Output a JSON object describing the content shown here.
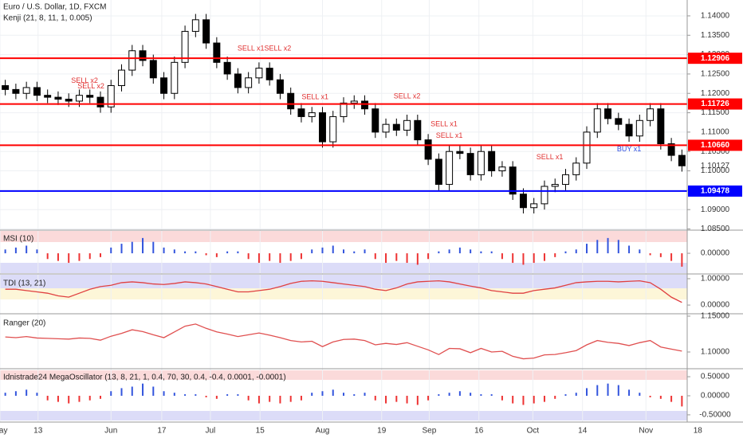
{
  "chart_data": [
    {
      "type": "candlestick",
      "title": "Euro / U.S. Dollar, 1D, FXCM",
      "subtitle": "Kenji (21, 8, 11, 1, 0.005)",
      "xlim": [
        0,
        65
      ],
      "ylim": [
        1.0849,
        1.1441
      ],
      "xticks": [
        {
          "value": 0,
          "label": "May"
        },
        {
          "value": 3.6,
          "label": "13"
        },
        {
          "value": 10.5,
          "label": "Jun"
        },
        {
          "value": 15.3,
          "label": "17"
        },
        {
          "value": 19.9,
          "label": "Jul"
        },
        {
          "value": 24.6,
          "label": "15"
        },
        {
          "value": 30.5,
          "label": "Aug"
        },
        {
          "value": 36.1,
          "label": "19"
        },
        {
          "value": 40.6,
          "label": "Sep"
        },
        {
          "value": 45.3,
          "label": "16"
        },
        {
          "value": 50.4,
          "label": "Oct"
        },
        {
          "value": 55.1,
          "label": "14"
        },
        {
          "value": 61.1,
          "label": "Nov"
        },
        {
          "value": 66,
          "label": "18"
        }
      ],
      "yticks": [
        {
          "value": 1.14,
          "label": "1.14000"
        },
        {
          "value": 1.135,
          "label": "1.13500"
        },
        {
          "value": 1.13,
          "label": "1.13000"
        },
        {
          "value": 1.125,
          "label": "1.12500"
        },
        {
          "value": 1.12,
          "label": "1.12000"
        },
        {
          "value": 1.115,
          "label": "1.11500"
        },
        {
          "value": 1.11,
          "label": "1.11000"
        },
        {
          "value": 1.105,
          "label": "1.10500"
        },
        {
          "value": 1.1,
          "label": "1.10000"
        },
        {
          "value": 1.095,
          "label": "1.09500"
        },
        {
          "value": 1.09,
          "label": "1.09000"
        },
        {
          "value": 1.085,
          "label": "1.08500"
        }
      ],
      "grid": true,
      "up_color": "#ffffff",
      "down_color": "#000000",
      "open": [
        1.122,
        1.121,
        1.12,
        1.1215,
        1.1195,
        1.119,
        1.1185,
        1.118,
        1.1195,
        1.119,
        1.1165,
        1.122,
        1.126,
        1.131,
        1.1285,
        1.124,
        1.12,
        1.128,
        1.136,
        1.139,
        1.133,
        1.128,
        1.125,
        1.1215,
        1.124,
        1.1265,
        1.1235,
        1.12,
        1.116,
        1.114,
        1.115,
        1.1075,
        1.114,
        1.1175,
        1.118,
        1.116,
        1.11,
        1.112,
        1.1105,
        1.113,
        1.108,
        1.103,
        1.0965,
        1.105,
        1.1045,
        1.099,
        1.105,
        1.1,
        1.101,
        1.094,
        1.0905,
        1.0915,
        1.096,
        1.0965,
        1.099,
        1.102,
        1.11,
        1.116,
        1.1135,
        1.112,
        1.109,
        1.113,
        1.116,
        1.107,
        1.104
      ],
      "high": [
        1.1235,
        1.1225,
        1.123,
        1.123,
        1.121,
        1.1205,
        1.12,
        1.121,
        1.121,
        1.1205,
        1.1235,
        1.1275,
        1.1325,
        1.1325,
        1.13,
        1.1255,
        1.1295,
        1.1375,
        1.1405,
        1.1405,
        1.1345,
        1.1295,
        1.1265,
        1.1255,
        1.128,
        1.128,
        1.125,
        1.1215,
        1.1175,
        1.1165,
        1.1165,
        1.1155,
        1.119,
        1.1195,
        1.1195,
        1.1175,
        1.1135,
        1.1135,
        1.1145,
        1.1145,
        1.1095,
        1.1045,
        1.1065,
        1.1065,
        1.106,
        1.1065,
        1.1065,
        1.1025,
        1.1025,
        1.0955,
        1.093,
        1.0975,
        1.098,
        1.1005,
        1.1035,
        1.1115,
        1.1175,
        1.1175,
        1.115,
        1.1135,
        1.1145,
        1.1175,
        1.1175,
        1.1085,
        1.1055
      ],
      "low": [
        1.1195,
        1.1185,
        1.1185,
        1.118,
        1.1175,
        1.117,
        1.1165,
        1.1165,
        1.1175,
        1.115,
        1.115,
        1.1205,
        1.1245,
        1.127,
        1.1225,
        1.1185,
        1.1185,
        1.1265,
        1.1345,
        1.1315,
        1.1265,
        1.1235,
        1.12,
        1.12,
        1.1225,
        1.122,
        1.1185,
        1.1145,
        1.1125,
        1.1125,
        1.106,
        1.106,
        1.1125,
        1.116,
        1.1145,
        1.1085,
        1.1085,
        1.109,
        1.109,
        1.1065,
        1.1015,
        1.095,
        1.095,
        1.103,
        1.0975,
        1.0975,
        1.0985,
        1.0985,
        1.0925,
        1.089,
        1.089,
        1.09,
        1.0945,
        1.095,
        1.0975,
        1.1005,
        1.1085,
        1.112,
        1.1105,
        1.1075,
        1.1075,
        1.1115,
        1.1055,
        1.1025,
        1.0998
      ],
      "close": [
        1.121,
        1.12,
        1.1215,
        1.1195,
        1.119,
        1.1185,
        1.118,
        1.1195,
        1.119,
        1.1165,
        1.122,
        1.126,
        1.131,
        1.1285,
        1.124,
        1.12,
        1.128,
        1.136,
        1.139,
        1.133,
        1.128,
        1.125,
        1.1215,
        1.124,
        1.1265,
        1.1235,
        1.12,
        1.116,
        1.114,
        1.115,
        1.1075,
        1.114,
        1.1175,
        1.118,
        1.116,
        1.11,
        1.112,
        1.1105,
        1.113,
        1.108,
        1.103,
        1.0965,
        1.105,
        1.1045,
        1.099,
        1.105,
        1.1,
        1.101,
        1.094,
        1.0905,
        1.0915,
        1.096,
        1.0965,
        1.099,
        1.102,
        1.11,
        1.116,
        1.1135,
        1.112,
        1.109,
        1.113,
        1.116,
        1.107,
        1.104,
        1.1013
      ],
      "levels": [
        {
          "value": 1.12906,
          "color": "#ff0000"
        },
        {
          "value": 1.11726,
          "color": "#ff0000"
        },
        {
          "value": 1.1066,
          "label": "1.10660",
          "color": "#ff0000"
        },
        {
          "value": 1.09478,
          "color": "#0000ff"
        }
      ],
      "last_price": 1.10127,
      "annotations": [
        {
          "text": "SELL x2",
          "x": 8,
          "y": 1.1232,
          "color": "#e03030"
        },
        {
          "text": "SELL x2",
          "x": 8.6,
          "y": 1.1218,
          "color": "#e03030"
        },
        {
          "text": "SELL x1SELL x2",
          "x": 25,
          "y": 1.1315,
          "color": "#e03030"
        },
        {
          "text": "SELL x1",
          "x": 29.8,
          "y": 1.119,
          "color": "#e03030"
        },
        {
          "text": "SELL x2",
          "x": 38.5,
          "y": 1.1192,
          "color": "#e03030"
        },
        {
          "text": "SELL x1",
          "x": 42,
          "y": 1.112,
          "color": "#e03030"
        },
        {
          "text": "SELL x1",
          "x": 42.5,
          "y": 1.109,
          "color": "#e03030"
        },
        {
          "text": "SELL x1",
          "x": 52,
          "y": 1.1035,
          "color": "#e03030"
        },
        {
          "text": "BUY x1",
          "x": 59.5,
          "y": 1.1055,
          "color": "#3050e0"
        }
      ]
    },
    {
      "type": "bar",
      "title": "MSI (10)",
      "ylim": [
        -1.04,
        1.17
      ],
      "yticks": [
        {
          "value": 0,
          "label": "0.00000"
        }
      ],
      "up_color": "#3355dd",
      "down_color": "#ee3333",
      "values": [
        0.2,
        0.3,
        0.4,
        0.2,
        -0.3,
        -0.4,
        -0.5,
        -0.4,
        -0.3,
        -0.2,
        0.3,
        0.5,
        0.6,
        0.8,
        0.6,
        0.3,
        0.2,
        0.1,
        0.1,
        -0.1,
        -0.2,
        0.1,
        0.1,
        -0.3,
        -0.5,
        -0.4,
        -0.5,
        -0.4,
        -0.3,
        0.2,
        0.3,
        0.4,
        0.2,
        0.1,
        0.2,
        -0.3,
        -0.5,
        -0.4,
        -0.5,
        -0.6,
        -0.3,
        0.1,
        0.2,
        0.3,
        0.2,
        0.1,
        0.1,
        -0.3,
        -0.5,
        -0.6,
        -0.5,
        -0.4,
        -0.2,
        0.1,
        0.2,
        0.5,
        0.7,
        0.8,
        0.7,
        0.4,
        0.2,
        -0.1,
        -0.2,
        -0.4,
        -0.7
      ]
    },
    {
      "type": "line",
      "title": "TDI (13, 21)",
      "ylim": [
        -0.3,
        1.15
      ],
      "yticks": [
        {
          "value": 1,
          "label": "1.00000"
        },
        {
          "value": 0,
          "label": "0.00000"
        }
      ],
      "color": "#e04040",
      "values": [
        0.6,
        0.6,
        0.55,
        0.5,
        0.45,
        0.35,
        0.3,
        0.45,
        0.6,
        0.7,
        0.75,
        0.85,
        0.88,
        0.85,
        0.8,
        0.78,
        0.82,
        0.88,
        0.85,
        0.8,
        0.7,
        0.6,
        0.5,
        0.5,
        0.55,
        0.6,
        0.7,
        0.82,
        0.9,
        0.92,
        0.9,
        0.85,
        0.8,
        0.75,
        0.7,
        0.6,
        0.55,
        0.65,
        0.8,
        0.88,
        0.9,
        0.92,
        0.88,
        0.8,
        0.72,
        0.65,
        0.55,
        0.5,
        0.45,
        0.45,
        0.55,
        0.6,
        0.65,
        0.75,
        0.85,
        0.88,
        0.9,
        0.9,
        0.88,
        0.9,
        0.92,
        0.85,
        0.6,
        0.3,
        0.1
      ]
    },
    {
      "type": "line",
      "title": "Ranger (20)",
      "ylim": [
        1.0778,
        1.1522
      ],
      "yticks": [
        {
          "value": 1.15,
          "label": "1.15000"
        },
        {
          "value": 1.1,
          "label": "1.10000"
        }
      ],
      "color": "#e05050",
      "values": [
        1.121,
        1.12,
        1.1215,
        1.1195,
        1.119,
        1.1185,
        1.118,
        1.1195,
        1.119,
        1.1165,
        1.122,
        1.126,
        1.131,
        1.1285,
        1.124,
        1.12,
        1.128,
        1.136,
        1.139,
        1.133,
        1.128,
        1.125,
        1.1215,
        1.124,
        1.1265,
        1.1235,
        1.12,
        1.116,
        1.114,
        1.115,
        1.1075,
        1.114,
        1.1175,
        1.118,
        1.116,
        1.11,
        1.112,
        1.1105,
        1.113,
        1.108,
        1.103,
        1.0965,
        1.105,
        1.1045,
        1.099,
        1.105,
        1.1,
        1.101,
        1.094,
        1.0905,
        1.0915,
        1.096,
        1.0965,
        1.099,
        1.102,
        1.11,
        1.116,
        1.1135,
        1.112,
        1.109,
        1.113,
        1.116,
        1.107,
        1.104,
        1.1013
      ]
    },
    {
      "type": "bar",
      "title": "Idnistrade24 MegaOscillator (13, 8, 21, 1, 0.4, 70, 30, 0.4, -0.4, 0.0001, -0.0001)",
      "ylim": [
        -0.69,
        0.71
      ],
      "yticks": [
        {
          "value": 0.5,
          "label": "0.50000"
        },
        {
          "value": 0,
          "label": "0.00000"
        },
        {
          "value": -0.5,
          "label": "-0.50000"
        }
      ],
      "up_color": "#3355dd",
      "down_color": "#ee3333",
      "values": [
        0.08,
        0.12,
        0.16,
        0.08,
        -0.12,
        -0.16,
        -0.2,
        -0.16,
        -0.12,
        -0.08,
        0.12,
        0.2,
        0.24,
        0.32,
        0.24,
        0.12,
        0.08,
        0.04,
        0.04,
        -0.04,
        -0.08,
        0.04,
        0.04,
        -0.12,
        -0.2,
        -0.16,
        -0.2,
        -0.16,
        -0.12,
        0.08,
        0.12,
        0.16,
        0.08,
        0.04,
        0.08,
        -0.12,
        -0.2,
        -0.16,
        -0.2,
        -0.24,
        -0.12,
        0.04,
        0.08,
        0.12,
        0.08,
        0.04,
        0.04,
        -0.12,
        -0.2,
        -0.24,
        -0.2,
        -0.16,
        -0.08,
        0.04,
        0.08,
        0.2,
        0.28,
        0.32,
        0.28,
        0.16,
        0.08,
        -0.04,
        -0.08,
        -0.16,
        -0.28
      ]
    }
  ]
}
